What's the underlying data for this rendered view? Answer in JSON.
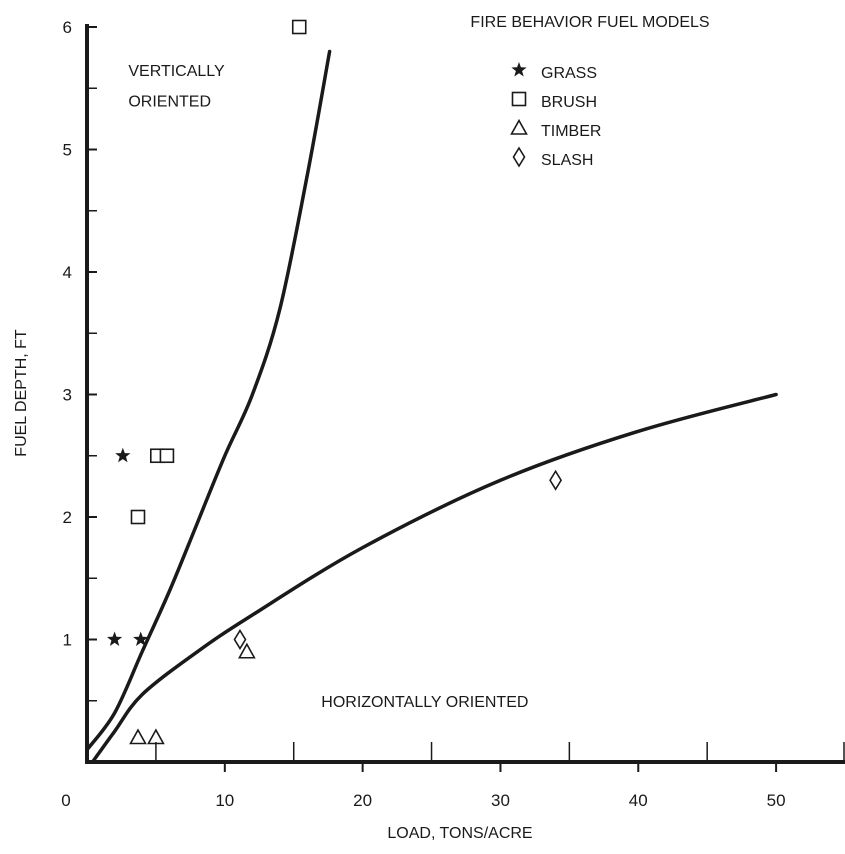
{
  "chart_data": {
    "type": "scatter",
    "title": "FIRE BEHAVIOR FUEL MODELS",
    "xlabel": "LOAD, TONS/ACRE",
    "ylabel": "FUEL DEPTH, FT",
    "xlim": [
      0,
      55
    ],
    "ylim": [
      0,
      6
    ],
    "x_ticks": [
      0,
      10,
      20,
      30,
      40,
      50
    ],
    "y_ticks": [
      1,
      2,
      3,
      4,
      5,
      6
    ],
    "x_minor_ticks": [
      5,
      15,
      25,
      35,
      45,
      55
    ],
    "y_minor_ticks": [
      0.5,
      1.5,
      2.5,
      3.5,
      4.5,
      5.5
    ],
    "grid": false,
    "legend_position": "top-right",
    "legend_title": "FIRE BEHAVIOR FUEL MODELS",
    "series": [
      {
        "name": "GRASS",
        "marker": "star",
        "points": [
          [
            2.6,
            2.5
          ],
          [
            2.0,
            1.0
          ],
          [
            3.9,
            1.0
          ]
        ]
      },
      {
        "name": "BRUSH",
        "marker": "square",
        "points": [
          [
            15.4,
            6.0
          ],
          [
            5.1,
            2.5
          ],
          [
            5.8,
            2.5
          ],
          [
            3.7,
            2.0
          ]
        ]
      },
      {
        "name": "TIMBER",
        "marker": "triangle",
        "points": [
          [
            11.6,
            0.9
          ],
          [
            3.7,
            0.2
          ],
          [
            5.0,
            0.2
          ]
        ]
      },
      {
        "name": "SLASH",
        "marker": "diamond",
        "points": [
          [
            34.0,
            2.3
          ],
          [
            11.1,
            1.0
          ]
        ]
      }
    ],
    "boundary_curves": [
      {
        "points": [
          [
            0.0,
            0.1
          ],
          [
            2.0,
            0.4
          ],
          [
            4.0,
            0.9
          ],
          [
            6.0,
            1.4
          ],
          [
            8.0,
            1.95
          ],
          [
            10.0,
            2.5
          ],
          [
            12.0,
            3.0
          ],
          [
            14.0,
            3.7
          ],
          [
            16.0,
            4.8
          ],
          [
            17.6,
            5.8
          ]
        ]
      },
      {
        "points": [
          [
            0.4,
            0.0
          ],
          [
            2.0,
            0.25
          ],
          [
            4.0,
            0.55
          ],
          [
            8.0,
            0.9
          ],
          [
            12.0,
            1.2
          ],
          [
            20.0,
            1.75
          ],
          [
            30.0,
            2.3
          ],
          [
            40.0,
            2.7
          ],
          [
            50.0,
            3.0
          ]
        ]
      }
    ],
    "annotations": [
      {
        "text": "VERTICALLY",
        "x": 3.0,
        "y": 5.6
      },
      {
        "text": "ORIENTED",
        "x": 3.0,
        "y": 5.35
      },
      {
        "text": "HORIZONTALLY ORIENTED",
        "x": 17.0,
        "y": 0.45
      }
    ]
  }
}
